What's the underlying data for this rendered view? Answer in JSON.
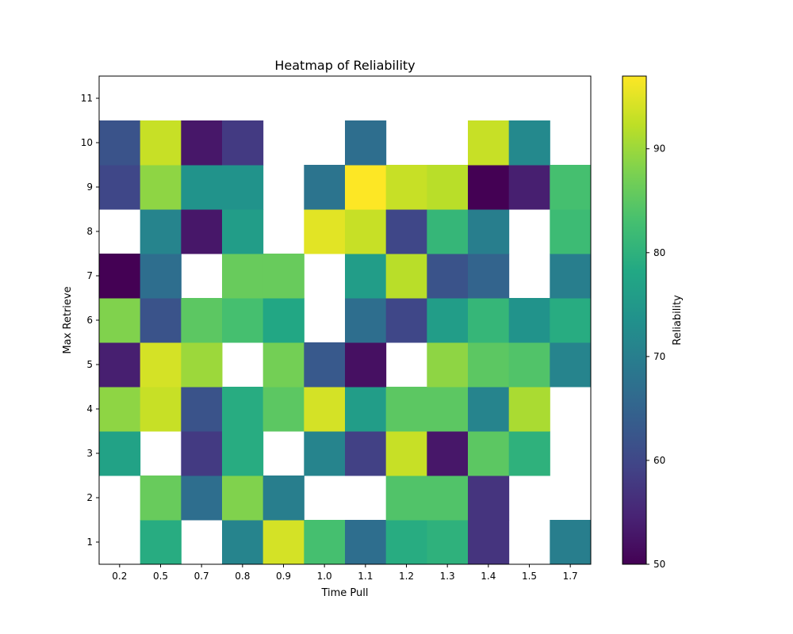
{
  "chart_data": {
    "type": "heatmap",
    "title": "Heatmap of Reliability",
    "xlabel": "Time Pull",
    "ylabel": "Max Retrieve",
    "x_categories": [
      "0.2",
      "0.5",
      "0.7",
      "0.8",
      "0.9",
      "1.0",
      "1.1",
      "1.2",
      "1.3",
      "1.4",
      "1.5",
      "1.7"
    ],
    "y_categories": [
      "1",
      "2",
      "3",
      "4",
      "5",
      "6",
      "7",
      "8",
      "9",
      "10",
      "11"
    ],
    "values": [
      [
        null,
        79,
        null,
        71,
        94,
        83,
        67,
        79,
        80,
        57,
        null,
        70
      ],
      [
        null,
        86,
        67,
        88,
        70,
        null,
        null,
        84,
        84,
        57,
        null,
        null
      ],
      [
        77,
        null,
        58,
        79,
        null,
        71,
        59,
        93,
        53,
        85,
        80,
        null
      ],
      [
        89,
        93,
        62,
        79,
        85,
        94,
        76,
        85,
        85,
        71,
        91,
        null
      ],
      [
        54,
        94,
        90,
        null,
        87,
        63,
        52,
        null,
        89,
        85,
        84,
        71
      ],
      [
        88,
        62,
        85,
        83,
        78,
        null,
        67,
        60,
        76,
        81,
        74,
        79
      ],
      [
        50,
        67,
        null,
        86,
        86,
        null,
        76,
        92,
        62,
        65,
        null,
        70
      ],
      [
        null,
        71,
        53,
        76,
        null,
        95,
        93,
        60,
        81,
        70,
        null,
        82
      ],
      [
        60,
        89,
        74,
        74,
        null,
        68,
        97,
        93,
        92,
        50,
        54,
        83
      ],
      [
        62,
        93,
        53,
        58,
        null,
        null,
        67,
        null,
        null,
        93,
        72,
        null
      ],
      [
        null,
        null,
        null,
        null,
        null,
        null,
        null,
        null,
        null,
        null,
        null,
        null
      ]
    ],
    "colormap": "viridis",
    "colorbar": {
      "label": "Reliability",
      "range": [
        50,
        97
      ],
      "ticks": [
        "50",
        "60",
        "70",
        "80",
        "90"
      ]
    },
    "grid": false,
    "missing_color": "#ffffff"
  }
}
